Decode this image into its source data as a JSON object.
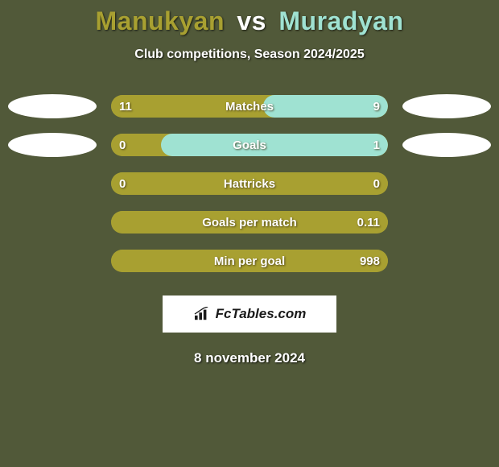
{
  "background_color": "#515939",
  "title": {
    "player1": "Manukyan",
    "vs": "vs",
    "player2": "Muradyan",
    "player1_color": "#a8a031",
    "vs_color": "#ffffff",
    "player2_color": "#9fe2d2"
  },
  "subtitle": "Club competitions, Season 2024/2025",
  "track_color": "#a8a031",
  "fill_color_left": "#a8a031",
  "fill_color_right": "#9fe2d2",
  "ellipse_color": "#ffffff",
  "stats": [
    {
      "label": "Matches",
      "left_val": "11",
      "right_val": "9",
      "left_pct": 55,
      "right_pct": 45,
      "show_ellipses": true
    },
    {
      "label": "Goals",
      "left_val": "0",
      "right_val": "1",
      "left_pct": 18,
      "right_pct": 82,
      "show_ellipses": true
    },
    {
      "label": "Hattricks",
      "left_val": "0",
      "right_val": "0",
      "left_pct": 100,
      "right_pct": 0,
      "show_ellipses": false
    },
    {
      "label": "Goals per match",
      "left_val": "",
      "right_val": "0.11",
      "left_pct": 100,
      "right_pct": 0,
      "show_ellipses": false
    },
    {
      "label": "Min per goal",
      "left_val": "",
      "right_val": "998",
      "left_pct": 100,
      "right_pct": 0,
      "show_ellipses": false
    }
  ],
  "logo_text": "FcTables.com",
  "date": "8 november 2024"
}
